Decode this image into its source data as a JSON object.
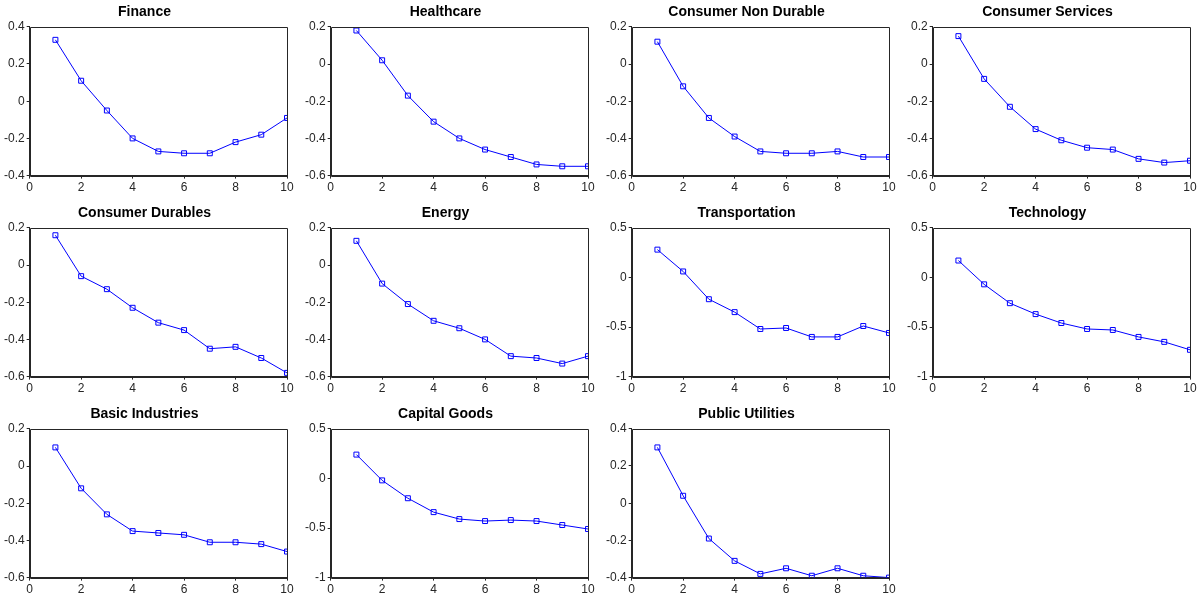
{
  "chart_data": [
    {
      "type": "line",
      "title": "Finance",
      "x": [
        1,
        2,
        3,
        4,
        5,
        6,
        7,
        8,
        9,
        10
      ],
      "values": [
        0.33,
        0.11,
        -0.05,
        -0.2,
        -0.27,
        -0.28,
        -0.28,
        -0.22,
        -0.18,
        -0.09
      ],
      "color": "#0000ff",
      "marker": "square",
      "xlim": [
        0,
        10
      ],
      "xticks": [
        0,
        2,
        4,
        6,
        8,
        10
      ],
      "ylim": [
        -0.4,
        0.4
      ],
      "yticks": [
        -0.4,
        -0.2,
        0,
        0.2,
        0.4
      ]
    },
    {
      "type": "line",
      "title": "Healthcare",
      "x": [
        1,
        2,
        3,
        4,
        5,
        6,
        7,
        8,
        9,
        10
      ],
      "values": [
        0.18,
        0.02,
        -0.17,
        -0.31,
        -0.4,
        -0.46,
        -0.5,
        -0.54,
        -0.55,
        -0.55
      ],
      "color": "#0000ff",
      "marker": "square",
      "xlim": [
        0,
        10
      ],
      "xticks": [
        0,
        2,
        4,
        6,
        8,
        10
      ],
      "ylim": [
        -0.6,
        0.2
      ],
      "yticks": [
        -0.6,
        -0.4,
        -0.2,
        0,
        0.2
      ]
    },
    {
      "type": "line",
      "title": "Consumer Non Durable",
      "x": [
        1,
        2,
        3,
        4,
        5,
        6,
        7,
        8,
        9,
        10
      ],
      "values": [
        0.12,
        -0.12,
        -0.29,
        -0.39,
        -0.47,
        -0.48,
        -0.48,
        -0.47,
        -0.5,
        -0.5
      ],
      "color": "#0000ff",
      "marker": "square",
      "xlim": [
        0,
        10
      ],
      "xticks": [
        0,
        2,
        4,
        6,
        8,
        10
      ],
      "ylim": [
        -0.6,
        0.2
      ],
      "yticks": [
        -0.6,
        -0.4,
        -0.2,
        0,
        0.2
      ]
    },
    {
      "type": "line",
      "title": "Consumer Services",
      "x": [
        1,
        2,
        3,
        4,
        5,
        6,
        7,
        8,
        9,
        10
      ],
      "values": [
        0.15,
        -0.08,
        -0.23,
        -0.35,
        -0.41,
        -0.45,
        -0.46,
        -0.51,
        -0.53,
        -0.52
      ],
      "color": "#0000ff",
      "marker": "square",
      "xlim": [
        0,
        10
      ],
      "xticks": [
        0,
        2,
        4,
        6,
        8,
        10
      ],
      "ylim": [
        -0.6,
        0.2
      ],
      "yticks": [
        -0.6,
        -0.4,
        -0.2,
        0,
        0.2
      ]
    },
    {
      "type": "line",
      "title": "Consumer Durables",
      "x": [
        1,
        2,
        3,
        4,
        5,
        6,
        7,
        8,
        9,
        10
      ],
      "values": [
        0.16,
        -0.06,
        -0.13,
        -0.23,
        -0.31,
        -0.35,
        -0.45,
        -0.44,
        -0.5,
        -0.58
      ],
      "color": "#0000ff",
      "marker": "square",
      "xlim": [
        0,
        10
      ],
      "xticks": [
        0,
        2,
        4,
        6,
        8,
        10
      ],
      "ylim": [
        -0.6,
        0.2
      ],
      "yticks": [
        -0.6,
        -0.4,
        -0.2,
        0,
        0.2
      ]
    },
    {
      "type": "line",
      "title": "Energy",
      "x": [
        1,
        2,
        3,
        4,
        5,
        6,
        7,
        8,
        9,
        10
      ],
      "values": [
        0.13,
        -0.1,
        -0.21,
        -0.3,
        -0.34,
        -0.4,
        -0.49,
        -0.5,
        -0.53,
        -0.49
      ],
      "color": "#0000ff",
      "marker": "square",
      "xlim": [
        0,
        10
      ],
      "xticks": [
        0,
        2,
        4,
        6,
        8,
        10
      ],
      "ylim": [
        -0.6,
        0.2
      ],
      "yticks": [
        -0.6,
        -0.4,
        -0.2,
        0,
        0.2
      ]
    },
    {
      "type": "line",
      "title": "Transportation",
      "x": [
        1,
        2,
        3,
        4,
        5,
        6,
        7,
        8,
        9,
        10
      ],
      "values": [
        0.28,
        0.06,
        -0.22,
        -0.35,
        -0.52,
        -0.51,
        -0.6,
        -0.6,
        -0.49,
        -0.56
      ],
      "color": "#0000ff",
      "marker": "square",
      "xlim": [
        0,
        10
      ],
      "xticks": [
        0,
        2,
        4,
        6,
        8,
        10
      ],
      "ylim": [
        -1,
        0.5
      ],
      "yticks": [
        -1,
        -0.5,
        0,
        0.5
      ]
    },
    {
      "type": "line",
      "title": "Technology",
      "x": [
        1,
        2,
        3,
        4,
        5,
        6,
        7,
        8,
        9,
        10
      ],
      "values": [
        0.17,
        -0.07,
        -0.26,
        -0.37,
        -0.46,
        -0.52,
        -0.53,
        -0.6,
        -0.65,
        -0.73
      ],
      "color": "#0000ff",
      "marker": "square",
      "xlim": [
        0,
        10
      ],
      "xticks": [
        0,
        2,
        4,
        6,
        8,
        10
      ],
      "ylim": [
        -1,
        0.5
      ],
      "yticks": [
        -1,
        -0.5,
        0,
        0.5
      ]
    },
    {
      "type": "line",
      "title": "Basic Industries",
      "x": [
        1,
        2,
        3,
        4,
        5,
        6,
        7,
        8,
        9,
        10
      ],
      "values": [
        0.1,
        -0.12,
        -0.26,
        -0.35,
        -0.36,
        -0.37,
        -0.41,
        -0.41,
        -0.42,
        -0.46
      ],
      "color": "#0000ff",
      "marker": "square",
      "xlim": [
        0,
        10
      ],
      "xticks": [
        0,
        2,
        4,
        6,
        8,
        10
      ],
      "ylim": [
        -0.6,
        0.2
      ],
      "yticks": [
        -0.6,
        -0.4,
        -0.2,
        0,
        0.2
      ]
    },
    {
      "type": "line",
      "title": "Capital Goods",
      "x": [
        1,
        2,
        3,
        4,
        5,
        6,
        7,
        8,
        9,
        10
      ],
      "values": [
        0.24,
        -0.02,
        -0.2,
        -0.34,
        -0.41,
        -0.43,
        -0.42,
        -0.43,
        -0.47,
        -0.51
      ],
      "color": "#0000ff",
      "marker": "square",
      "xlim": [
        0,
        10
      ],
      "xticks": [
        0,
        2,
        4,
        6,
        8,
        10
      ],
      "ylim": [
        -1,
        0.5
      ],
      "yticks": [
        -1,
        -0.5,
        0,
        0.5
      ]
    },
    {
      "type": "line",
      "title": "Public Utilities",
      "x": [
        1,
        2,
        3,
        4,
        5,
        6,
        7,
        8,
        9,
        10
      ],
      "values": [
        0.3,
        0.04,
        -0.19,
        -0.31,
        -0.38,
        -0.35,
        -0.39,
        -0.35,
        -0.39,
        -0.4
      ],
      "color": "#0000ff",
      "marker": "square",
      "xlim": [
        0,
        10
      ],
      "xticks": [
        0,
        2,
        4,
        6,
        8,
        10
      ],
      "ylim": [
        -0.4,
        0.4
      ],
      "yticks": [
        -0.4,
        -0.2,
        0,
        0.2,
        0.4
      ]
    }
  ]
}
